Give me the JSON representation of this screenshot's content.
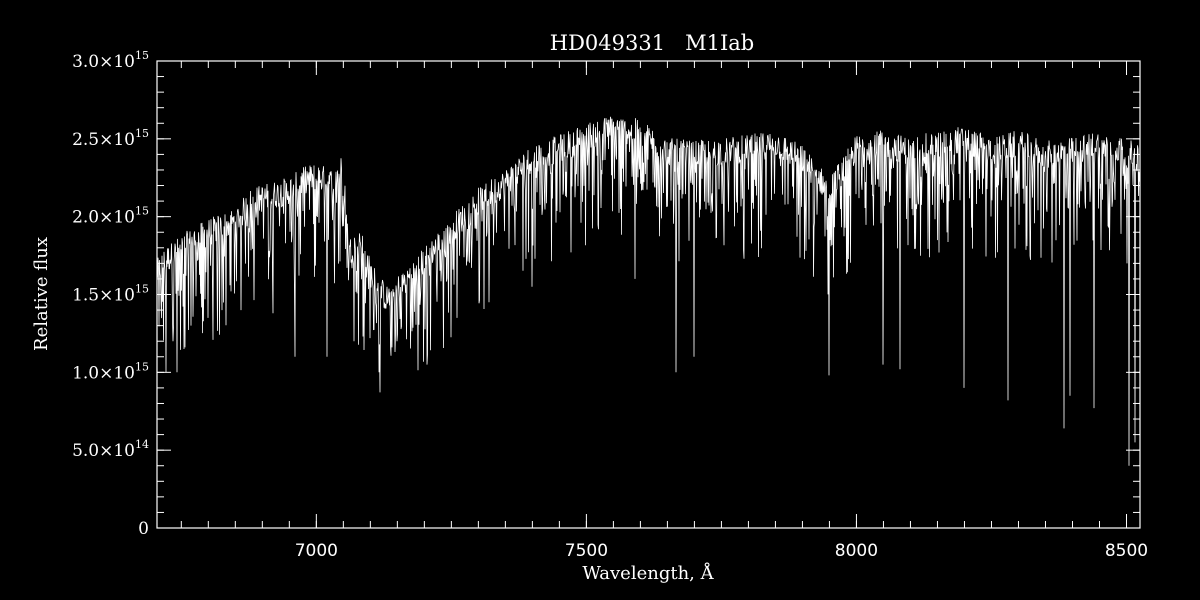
{
  "chart_data": {
    "type": "line",
    "title": "HD049331   M1Iab",
    "xlabel": "Wavelength, Å",
    "ylabel": "Relative flux",
    "xlim": [
      6705,
      8525
    ],
    "ylim": [
      0,
      3000000000000000.0
    ],
    "x_ticks": [
      {
        "value": 7000,
        "label": "7000"
      },
      {
        "value": 7500,
        "label": "7500"
      },
      {
        "value": 8000,
        "label": "8000"
      },
      {
        "value": 8500,
        "label": "8500"
      }
    ],
    "x_minor_step": 50,
    "y_ticks": [
      {
        "value": 0,
        "label": "0",
        "base": "0",
        "exp": ""
      },
      {
        "value": 500000000000000.0,
        "label": "5.0×10^14",
        "base": "5.0×10",
        "exp": "14"
      },
      {
        "value": 1000000000000000.0,
        "label": "1.0×10^15",
        "base": "1.0×10",
        "exp": "15"
      },
      {
        "value": 1500000000000000.0,
        "label": "1.5×10^15",
        "base": "1.5×10",
        "exp": "15"
      },
      {
        "value": 2000000000000000.0,
        "label": "2.0×10^15",
        "base": "2.0×10",
        "exp": "15"
      },
      {
        "value": 2500000000000000.0,
        "label": "2.5×10^15",
        "base": "2.5×10",
        "exp": "15"
      },
      {
        "value": 3000000000000000.0,
        "label": "3.0×10^15",
        "base": "3.0×10",
        "exp": "15"
      }
    ],
    "y_minor_step": 100000000000000.0,
    "grid": false,
    "colors": {
      "background": "#000000",
      "foreground": "#ffffff"
    },
    "series": [
      {
        "continuum_x": [
          6705,
          6720,
          6760,
          6800,
          6850,
          6880,
          6900,
          6950,
          6980,
          7000,
          7030,
          7050,
          7060,
          7080,
          7100,
          7130,
          7160,
          7200,
          7250,
          7300,
          7350,
          7400,
          7450,
          7500,
          7550,
          7600,
          7650,
          7700,
          7750,
          7800,
          7850,
          7900,
          7950,
          8000,
          8050,
          8100,
          8150,
          8200,
          8250,
          8300,
          8350,
          8400,
          8450,
          8500,
          8525
        ],
        "continuum_y": [
          1620000000000000.0,
          1700000000000000.0,
          1800000000000000.0,
          1880000000000000.0,
          1950000000000000.0,
          2080000000000000.0,
          2100000000000000.0,
          2150000000000000.0,
          2220000000000000.0,
          2240000000000000.0,
          2200000000000000.0,
          2300000000000000.0,
          1750000000000000.0,
          1850000000000000.0,
          1620000000000000.0,
          1450000000000000.0,
          1550000000000000.0,
          1700000000000000.0,
          1900000000000000.0,
          2080000000000000.0,
          2200000000000000.0,
          2360000000000000.0,
          2420000000000000.0,
          2500000000000000.0,
          2550000000000000.0,
          2520000000000000.0,
          2400000000000000.0,
          2380000000000000.0,
          2400000000000000.0,
          2420000000000000.0,
          2450000000000000.0,
          2350000000000000.0,
          2150000000000000.0,
          2420000000000000.0,
          2450000000000000.0,
          2400000000000000.0,
          2450000000000000.0,
          2480000000000000.0,
          2400000000000000.0,
          2450000000000000.0,
          2380000000000000.0,
          2400000000000000.0,
          2450000000000000.0,
          2400000000000000.0,
          2350000000000000.0
        ],
        "deep_lines": [
          {
            "x": 6712,
            "y": 1450000000000000.0
          },
          {
            "x": 6722,
            "y": 1000000000000000.0
          },
          {
            "x": 6735,
            "y": 1200000000000000.0
          },
          {
            "x": 6742,
            "y": 1000000000000000.0
          },
          {
            "x": 6755,
            "y": 1150000000000000.0
          },
          {
            "x": 6768,
            "y": 1300000000000000.0
          },
          {
            "x": 6800,
            "y": 1350000000000000.0
          },
          {
            "x": 6825,
            "y": 1400000000000000.0
          },
          {
            "x": 6860,
            "y": 1400000000000000.0
          },
          {
            "x": 6920,
            "y": 1380000000000000.0
          },
          {
            "x": 6960,
            "y": 1100000000000000.0
          },
          {
            "x": 7020,
            "y": 1100000000000000.0
          },
          {
            "x": 7070,
            "y": 1200000000000000.0
          },
          {
            "x": 7100,
            "y": 1220000000000000.0
          },
          {
            "x": 7150,
            "y": 1200000000000000.0
          },
          {
            "x": 7205,
            "y": 1050000000000000.0
          },
          {
            "x": 7260,
            "y": 1350000000000000.0
          },
          {
            "x": 7320,
            "y": 1450000000000000.0
          },
          {
            "x": 7400,
            "y": 1550000000000000.0
          },
          {
            "x": 7590,
            "y": 1600000000000000.0
          },
          {
            "x": 7665,
            "y": 1000000000000000.0
          },
          {
            "x": 7700,
            "y": 1100000000000000.0
          },
          {
            "x": 7950,
            "y": 980000000000000.0
          },
          {
            "x": 8050,
            "y": 1050000000000000.0
          },
          {
            "x": 8080,
            "y": 1020000000000000.0
          },
          {
            "x": 8200,
            "y": 900000000000000.0
          },
          {
            "x": 8280,
            "y": 820000000000000.0
          },
          {
            "x": 8385,
            "y": 640000000000000.0
          },
          {
            "x": 8395,
            "y": 850000000000000.0
          },
          {
            "x": 8440,
            "y": 770000000000000.0
          },
          {
            "x": 8505,
            "y": 400000000000000.0
          },
          {
            "x": 8515,
            "y": 550000000000000.0
          }
        ]
      }
    ]
  }
}
